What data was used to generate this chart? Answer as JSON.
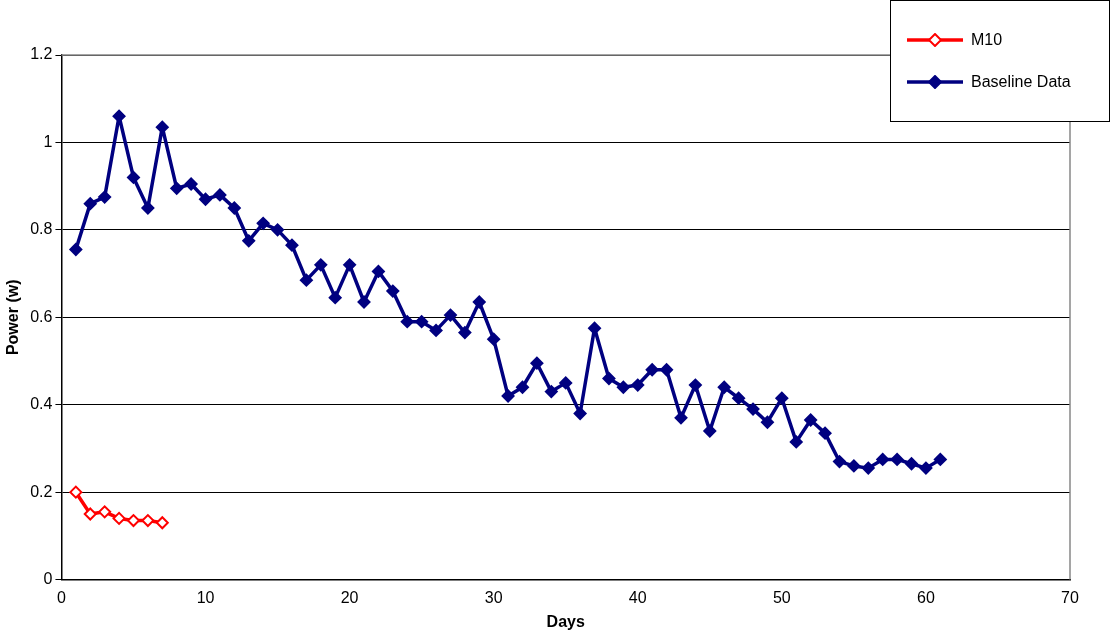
{
  "chart_data": {
    "type": "line",
    "xlabel": "Days",
    "ylabel": "Power (w)",
    "xlim": [
      0,
      70
    ],
    "xticks": [
      0,
      10,
      20,
      30,
      40,
      50,
      60,
      70
    ],
    "ylim": [
      0,
      1.2
    ],
    "yticks": [
      0,
      0.2,
      0.4,
      0.6,
      0.8,
      1,
      1.2
    ],
    "grid": "y",
    "legend": "top right",
    "marker": "diamond",
    "line_style": "solid",
    "series": [
      {
        "name": "M10",
        "color": "#ff0000",
        "x": [
          1,
          2,
          3,
          4,
          5,
          6,
          7
        ],
        "values": [
          0.2,
          0.15,
          0.155,
          0.14,
          0.135,
          0.135,
          0.13
        ]
      },
      {
        "name": "Baseline Data",
        "color": "#000080",
        "x": [
          1,
          2,
          3,
          4,
          5,
          6,
          7,
          8,
          9,
          10,
          11,
          12,
          13,
          14,
          15,
          16,
          17,
          18,
          19,
          20,
          21,
          22,
          23,
          24,
          25,
          26,
          27,
          28,
          29,
          30,
          31,
          32,
          33,
          34,
          35,
          36,
          37,
          38,
          39,
          40,
          41,
          42,
          43,
          44,
          45,
          46,
          47,
          48,
          49,
          50,
          51,
          52,
          53,
          54,
          55,
          56,
          57,
          58,
          59,
          60,
          61
        ],
        "values": [
          0.755,
          0.86,
          0.875,
          1.06,
          0.92,
          0.85,
          1.035,
          0.895,
          0.905,
          0.87,
          0.88,
          0.85,
          0.775,
          0.815,
          0.8,
          0.765,
          0.685,
          0.72,
          0.645,
          0.72,
          0.635,
          0.705,
          0.66,
          0.59,
          0.59,
          0.57,
          0.605,
          0.565,
          0.635,
          0.55,
          0.42,
          0.44,
          0.495,
          0.43,
          0.45,
          0.38,
          0.575,
          0.46,
          0.44,
          0.445,
          0.48,
          0.48,
          0.37,
          0.445,
          0.34,
          0.44,
          0.415,
          0.39,
          0.36,
          0.415,
          0.315,
          0.365,
          0.335,
          0.27,
          0.26,
          0.255,
          0.275,
          0.275,
          0.265,
          0.255,
          0.275
        ]
      }
    ]
  }
}
